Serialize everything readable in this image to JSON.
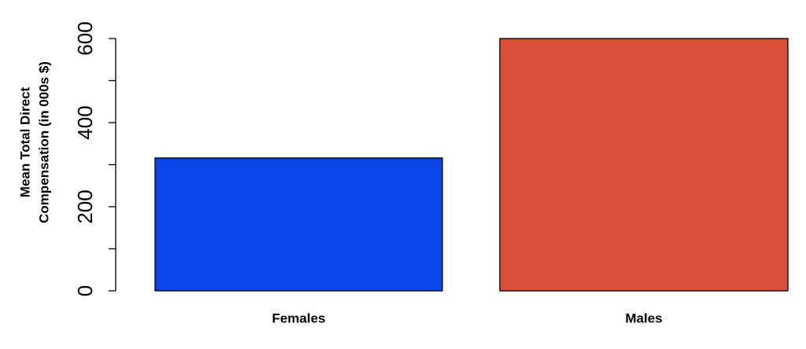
{
  "chart_data": {
    "type": "bar",
    "ylabel": [
      "Mean Total Direct",
      "Compensation (in 000s $)"
    ],
    "categories": [
      "Females",
      "Males"
    ],
    "values": [
      316,
      600
    ],
    "colors": [
      "#0b45ea",
      "#d94f37"
    ],
    "ylim": [
      0,
      600
    ],
    "yticks": [
      0,
      200,
      400,
      600
    ],
    "yticks_minor": [
      100,
      300,
      500
    ]
  }
}
